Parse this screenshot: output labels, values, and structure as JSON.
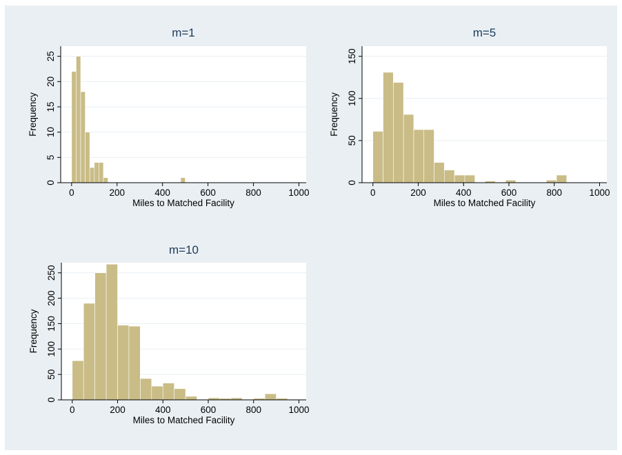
{
  "chart_data": [
    {
      "type": "bar",
      "title": "m=1",
      "xlabel": "Miles to Matched Facility",
      "ylabel": "Frequency",
      "xlim": [
        0,
        1000
      ],
      "ylim": [
        0,
        25
      ],
      "xticks": [
        0,
        200,
        400,
        600,
        800,
        1000
      ],
      "yticks": [
        0,
        5,
        10,
        15,
        20,
        25
      ],
      "bin_width": 20,
      "bins": [
        {
          "x": 0,
          "y": 22
        },
        {
          "x": 20,
          "y": 25
        },
        {
          "x": 40,
          "y": 18
        },
        {
          "x": 60,
          "y": 10
        },
        {
          "x": 80,
          "y": 3
        },
        {
          "x": 100,
          "y": 4
        },
        {
          "x": 120,
          "y": 4
        },
        {
          "x": 140,
          "y": 1
        },
        {
          "x": 480,
          "y": 1
        }
      ],
      "grid": true,
      "legend": "none"
    },
    {
      "type": "bar",
      "title": "m=5",
      "xlabel": "Miles to Matched Facility",
      "ylabel": "Frequency",
      "xlim": [
        0,
        1000
      ],
      "ylim": [
        0,
        150
      ],
      "xticks": [
        0,
        200,
        400,
        600,
        800,
        1000
      ],
      "yticks": [
        0,
        50,
        100,
        150
      ],
      "bin_width": 45,
      "bins": [
        {
          "x": 0,
          "y": 61
        },
        {
          "x": 45,
          "y": 131
        },
        {
          "x": 90,
          "y": 119
        },
        {
          "x": 135,
          "y": 81
        },
        {
          "x": 180,
          "y": 63
        },
        {
          "x": 225,
          "y": 63
        },
        {
          "x": 270,
          "y": 24
        },
        {
          "x": 315,
          "y": 15
        },
        {
          "x": 360,
          "y": 9
        },
        {
          "x": 405,
          "y": 9
        },
        {
          "x": 495,
          "y": 2
        },
        {
          "x": 585,
          "y": 3
        },
        {
          "x": 765,
          "y": 3
        },
        {
          "x": 810,
          "y": 9
        }
      ],
      "grid": true,
      "legend": "none"
    },
    {
      "type": "bar",
      "title": "m=10",
      "xlabel": "Miles to Matched Facility",
      "ylabel": "Frequency",
      "xlim": [
        0,
        1000
      ],
      "ylim": [
        0,
        250
      ],
      "xticks": [
        0,
        200,
        400,
        600,
        800,
        1000
      ],
      "yticks": [
        0,
        50,
        100,
        150,
        200,
        250
      ],
      "bin_width": 50,
      "bins": [
        {
          "x": 0,
          "y": 77
        },
        {
          "x": 50,
          "y": 190
        },
        {
          "x": 100,
          "y": 250
        },
        {
          "x": 150,
          "y": 267
        },
        {
          "x": 200,
          "y": 147
        },
        {
          "x": 250,
          "y": 145
        },
        {
          "x": 300,
          "y": 42
        },
        {
          "x": 350,
          "y": 27
        },
        {
          "x": 400,
          "y": 33
        },
        {
          "x": 450,
          "y": 22
        },
        {
          "x": 500,
          "y": 7
        },
        {
          "x": 550,
          "y": 1
        },
        {
          "x": 600,
          "y": 4
        },
        {
          "x": 650,
          "y": 3
        },
        {
          "x": 700,
          "y": 4
        },
        {
          "x": 800,
          "y": 3
        },
        {
          "x": 850,
          "y": 12
        },
        {
          "x": 900,
          "y": 3
        }
      ],
      "grid": true,
      "legend": "none"
    }
  ]
}
